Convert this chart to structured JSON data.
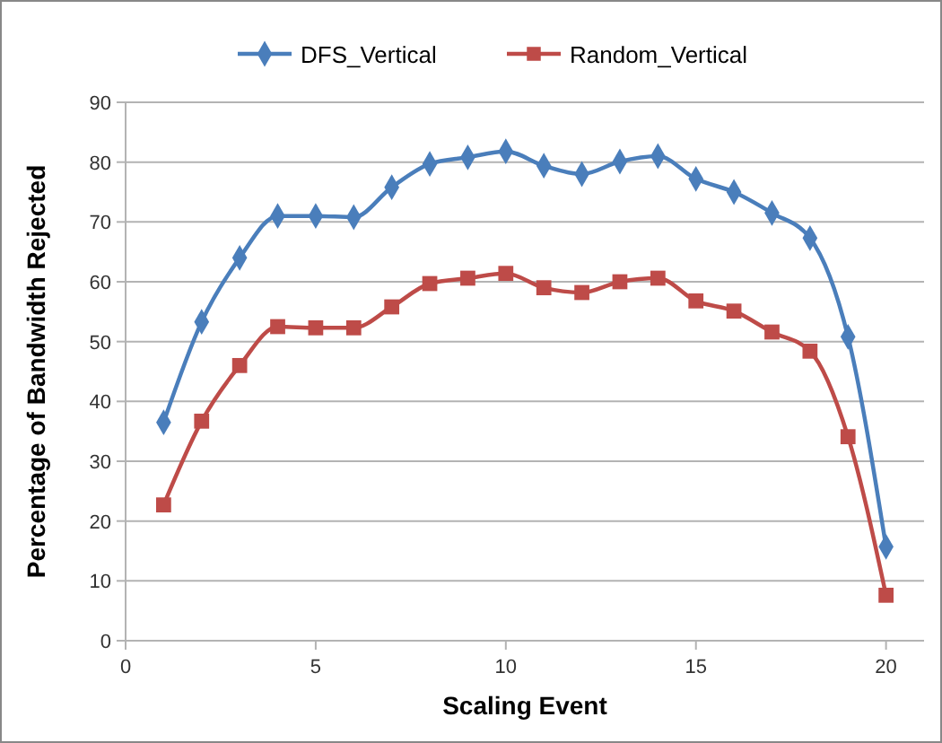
{
  "chart_data": {
    "type": "line",
    "xlabel": "Scaling Event",
    "ylabel": "Percentage of Bandwidth Rejected",
    "x": [
      1,
      2,
      3,
      4,
      5,
      6,
      7,
      8,
      9,
      10,
      11,
      12,
      13,
      14,
      15,
      16,
      17,
      18,
      19,
      20
    ],
    "xlim": [
      0,
      21
    ],
    "xticks": [
      0,
      5,
      10,
      15,
      20
    ],
    "ylim": [
      0,
      90
    ],
    "yticks": [
      0,
      10,
      20,
      30,
      40,
      50,
      60,
      70,
      80,
      90
    ],
    "grid": "y",
    "legend": "top",
    "series": [
      {
        "name": "DFS_Vertical",
        "color": "#4a7ebb",
        "marker": "diamond",
        "values": [
          36.5,
          53.3,
          64,
          71,
          71,
          70.8,
          75.8,
          79.7,
          80.8,
          81.8,
          79.4,
          78,
          80.1,
          81,
          77.2,
          75,
          71.5,
          67.3,
          50.8,
          15.7
        ]
      },
      {
        "name": "Random_Vertical",
        "color": "#be4b48",
        "marker": "square",
        "values": [
          22.7,
          36.7,
          46,
          52.5,
          52.3,
          52.3,
          55.8,
          59.7,
          60.6,
          61.4,
          59,
          58.2,
          60,
          60.6,
          56.8,
          55.1,
          51.6,
          48.4,
          34.1,
          7.6
        ]
      }
    ]
  }
}
